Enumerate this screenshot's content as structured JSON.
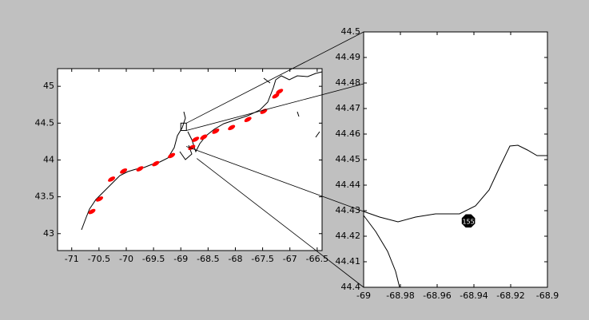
{
  "chart_data": [
    {
      "type": "scatter",
      "xlim": [
        -71.26,
        -66.41
      ],
      "ylim": [
        42.77,
        45.24
      ],
      "xticks": [
        -71,
        -70.5,
        -70,
        -69.5,
        -69,
        -68.5,
        -68,
        -67.5,
        -67,
        -66.5
      ],
      "yticks": [
        43,
        43.5,
        44,
        44.5,
        45
      ],
      "series": [
        {
          "color": "#ff0000",
          "x": [
            -70.63,
            -70.49,
            -70.27,
            -70.05,
            -69.75,
            -69.46,
            -69.17,
            -68.8,
            -68.73,
            -68.58,
            -68.36,
            -68.07,
            -67.77,
            -67.48,
            -67.26,
            -67.19
          ],
          "values": [
            43.3,
            43.47,
            43.74,
            43.85,
            43.88,
            43.95,
            44.06,
            44.17,
            44.28,
            44.31,
            44.39,
            44.44,
            44.55,
            44.66,
            44.87,
            44.93
          ]
        }
      ]
    },
    {
      "type": "scatter",
      "xlim": [
        -69,
        -68.9
      ],
      "ylim": [
        44.4,
        44.5
      ],
      "xticks": [
        -69,
        -68.98,
        -68.96,
        -68.94,
        -68.92,
        -68.9
      ],
      "yticks": [
        44.4,
        44.41,
        44.42,
        44.43,
        44.44,
        44.45,
        44.46,
        44.47,
        44.48,
        44.49,
        44.5
      ],
      "series": [
        {
          "color": "#000000",
          "x": [
            -68.943
          ],
          "values": [
            44.426
          ],
          "labels": [
            "155"
          ]
        }
      ]
    }
  ]
}
